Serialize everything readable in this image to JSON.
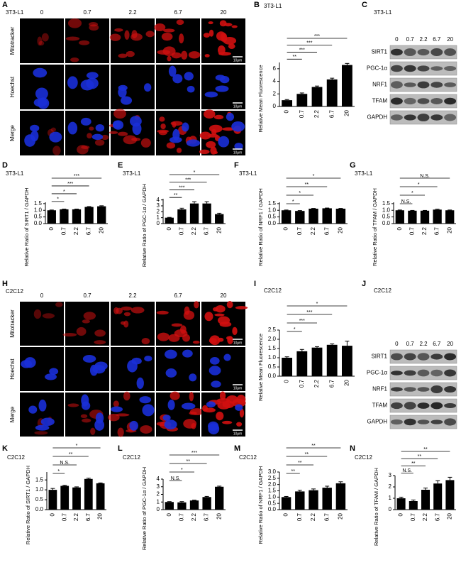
{
  "image_panels": [
    {
      "panel": "A",
      "subtitle": "3T3-L1",
      "columns": [
        "0",
        "0.7",
        "2.2",
        "6.7",
        "20"
      ],
      "rows": [
        "Mitotracker",
        "Hoechst",
        "Merge"
      ],
      "scale_bar": "10μm"
    },
    {
      "panel": "H",
      "subtitle": "C2C12",
      "columns": [
        "0",
        "0.7",
        "2.2",
        "6.7",
        "20"
      ],
      "rows": [
        "Mitotracker",
        "Hoechst",
        "Merge"
      ],
      "scale_bar": "10μm"
    }
  ],
  "blots": [
    {
      "panel": "C",
      "subtitle": "3T3-L1",
      "columns": [
        "0",
        "0.7",
        "2.2",
        "6.7",
        "20"
      ],
      "rows": [
        "SIRT1",
        "PGC-1α",
        "NRF1",
        "TFAM",
        "GAPDH"
      ]
    },
    {
      "panel": "J",
      "subtitle": "C2C12",
      "columns": [
        "0",
        "0.7",
        "2.2",
        "6.7",
        "20"
      ],
      "rows": [
        "SIRT1",
        "PGC-1α",
        "NRF1",
        "TFAM",
        "GAPDH"
      ]
    }
  ],
  "chart_data": [
    {
      "type": "bar",
      "panel": "B",
      "subtitle": "3T3-L1",
      "y_label": "Relative Mean Fluorescence",
      "categories": [
        "0",
        "0.7",
        "2.2",
        "6.7",
        "20"
      ],
      "values": [
        1,
        2,
        3.1,
        4.3,
        6.6
      ],
      "errors": [
        0.1,
        0.15,
        0.15,
        0.2,
        0.25
      ],
      "color": "#000000",
      "ylim": [
        0,
        7
      ],
      "yticks": [
        0,
        2,
        4,
        6
      ],
      "significance": [
        "**",
        "***",
        "***",
        "***"
      ]
    },
    {
      "type": "bar",
      "panel": "D",
      "subtitle": "3T3-L1",
      "y_label": "Relative Ratio of SIRT1 / GAPDH",
      "categories": [
        "0",
        "0.7",
        "2.2",
        "6.7",
        "20"
      ],
      "values": [
        1,
        1.07,
        1.07,
        1.25,
        1.3
      ],
      "errors": [
        0.02,
        0.02,
        0.02,
        0.03,
        0.04
      ],
      "color": "#000000",
      "ylim": [
        0,
        1.6
      ],
      "yticks": [
        {
          "value": 0,
          "label": "0.0"
        },
        0.5,
        {
          "value": 1,
          "label": "1.0"
        },
        1.5
      ],
      "significance": [
        "*",
        "*",
        "***",
        "***"
      ]
    },
    {
      "type": "bar",
      "panel": "E",
      "subtitle": "3T3-L1",
      "y_label": "Relative Ratio of PGC-1α / GAPDH",
      "categories": [
        "0",
        "0.7",
        "2.2",
        "6.7",
        "20"
      ],
      "values": [
        1,
        2.4,
        3.4,
        3.4,
        1.6
      ],
      "errors": [
        0.05,
        0.2,
        0.3,
        0.3,
        0.15
      ],
      "color": "#000000",
      "ylim": [
        0,
        4.2
      ],
      "yticks": [
        0,
        1,
        2,
        3,
        4
      ],
      "significance": [
        "**",
        "***",
        "***",
        "*"
      ]
    },
    {
      "type": "bar",
      "panel": "F",
      "subtitle": "3T3-L1",
      "y_label": "Relative Ratio of NRF1 / GAPDH",
      "categories": [
        "0",
        "0.7",
        "2.2",
        "6.7",
        "20"
      ],
      "values": [
        1,
        0.95,
        1.12,
        1.15,
        1.12
      ],
      "errors": [
        0.02,
        0.03,
        0.02,
        0.02,
        0.02
      ],
      "color": "#000000",
      "ylim": [
        0,
        1.6
      ],
      "yticks": [
        {
          "value": 0,
          "label": "0.0"
        },
        0.5,
        {
          "value": 1,
          "label": "1.0"
        },
        1.5
      ],
      "significance": [
        "*",
        "*",
        "**",
        "*"
      ]
    },
    {
      "type": "bar",
      "panel": "G",
      "subtitle": "3T3-L1",
      "y_label": "Relative Ratio of TFAM / GAPDH",
      "categories": [
        "0",
        "0.7",
        "2.2",
        "6.7",
        "20"
      ],
      "values": [
        1,
        0.97,
        0.97,
        1.05,
        1
      ],
      "errors": [
        0.02,
        0.02,
        0.02,
        0.03,
        0.02
      ],
      "color": "#000000",
      "ylim": [
        0,
        1.6
      ],
      "yticks": [
        {
          "value": 0,
          "label": "0.0"
        },
        0.5,
        {
          "value": 1,
          "label": "1.0"
        },
        1.5
      ],
      "significance": [
        "N.S.",
        "*",
        "*",
        "N.S."
      ]
    },
    {
      "type": "bar",
      "panel": "I",
      "subtitle": "C2C12",
      "y_label": "Relative Mean Fluorescence",
      "categories": [
        "0",
        "0.7",
        "2.2",
        "6.7",
        "20"
      ],
      "values": [
        1,
        1.35,
        1.55,
        1.7,
        1.65
      ],
      "errors": [
        0.05,
        0.1,
        0.05,
        0.05,
        0.25
      ],
      "color": "#000000",
      "ylim": [
        0,
        2.5
      ],
      "yticks": [
        {
          "value": 0,
          "label": "0.0"
        },
        0.5,
        {
          "value": 1,
          "label": "1.0"
        },
        1.5,
        {
          "value": 2,
          "label": "2.0"
        },
        2.5
      ],
      "significance": [
        "*",
        "***",
        "***",
        "*"
      ]
    },
    {
      "type": "bar",
      "panel": "K",
      "subtitle": "C2C12",
      "y_label": "Relative Ratio of SIRT1 / GAPDH",
      "categories": [
        "0",
        "0.7",
        "2.2",
        "6.7",
        "20"
      ],
      "values": [
        1,
        1.2,
        1.12,
        1.55,
        1.33
      ],
      "errors": [
        0.07,
        0.03,
        0.03,
        0.04,
        0.02
      ],
      "color": "#000000",
      "ylim": [
        0,
        1.9
      ],
      "yticks": [
        {
          "value": 0,
          "label": "0.0"
        },
        0.5,
        {
          "value": 1,
          "label": "1.0"
        },
        1.5
      ],
      "significance": [
        "*",
        "N.S.",
        "**",
        "*"
      ]
    },
    {
      "type": "bar",
      "panel": "L",
      "subtitle": "C2C12",
      "y_label": "Relative Ratio of PGC-1α / GAPDH",
      "categories": [
        "0",
        "0.7",
        "2.2",
        "6.7",
        "20"
      ],
      "values": [
        1,
        0.95,
        1.2,
        1.65,
        3
      ],
      "errors": [
        0.05,
        0.1,
        0.05,
        0.08,
        0.08
      ],
      "color": "#000000",
      "ylim": [
        0,
        4
      ],
      "yticks": [
        0,
        1,
        2,
        3,
        4
      ],
      "significance": [
        "N.S.",
        "*",
        "**",
        "***"
      ]
    },
    {
      "type": "bar",
      "panel": "M",
      "subtitle": "C2C12",
      "y_label": "Relative Ratio of NRF1 / GAPDH",
      "categories": [
        "0",
        "0.7",
        "2.2",
        "6.7",
        "20"
      ],
      "values": [
        1,
        1.45,
        1.55,
        1.75,
        2.1
      ],
      "errors": [
        0.05,
        0.1,
        0.1,
        0.12,
        0.12
      ],
      "color": "#000000",
      "ylim": [
        0,
        3
      ],
      "yticks": [
        {
          "value": 0,
          "label": "0.0"
        },
        0.5,
        {
          "value": 1,
          "label": "1.0"
        },
        1.5,
        {
          "value": 2,
          "label": "2.0"
        },
        2.5,
        {
          "value": 3,
          "label": "3.0"
        }
      ],
      "significance": [
        "**",
        "**",
        "**",
        "**"
      ]
    },
    {
      "type": "bar",
      "panel": "N",
      "subtitle": "C2C12",
      "y_label": "Relative Ratio of TFAM / GAPDH",
      "categories": [
        "0",
        "0.7",
        "2.2",
        "6.7",
        "20"
      ],
      "values": [
        1,
        0.75,
        1.75,
        2.3,
        2.6
      ],
      "errors": [
        0.1,
        0.1,
        0.15,
        0.25,
        0.25
      ],
      "color": "#000000",
      "ylim": [
        0,
        3
      ],
      "yticks": [
        0,
        1,
        2,
        3
      ],
      "significance": [
        "N.S.",
        "**",
        "**",
        "**"
      ]
    }
  ]
}
